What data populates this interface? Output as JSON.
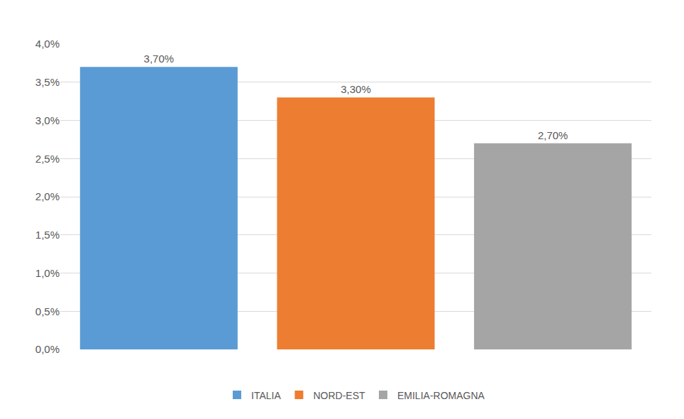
{
  "chart_data": {
    "type": "bar",
    "categories": [
      "ITALIA",
      "NORD-EST",
      "EMILIA-ROMAGNA"
    ],
    "values": [
      3.7,
      3.3,
      2.7
    ],
    "value_labels": [
      "3,70%",
      "3,30%",
      "2,70%"
    ],
    "colors": [
      "#5b9bd5",
      "#ed7d31",
      "#a5a5a5"
    ],
    "ylim": [
      0,
      4
    ],
    "yticks": [
      {
        "value": 0,
        "label": "0,0%"
      },
      {
        "value": 0.5,
        "label": "0,5%"
      },
      {
        "value": 1,
        "label": "1,0%"
      },
      {
        "value": 1.5,
        "label": "1,5%"
      },
      {
        "value": 2,
        "label": "2,0%"
      },
      {
        "value": 2.5,
        "label": "2,5%"
      },
      {
        "value": 3,
        "label": "3,0%"
      },
      {
        "value": 3.5,
        "label": "3,5%"
      },
      {
        "value": 4,
        "label": "4,0%"
      }
    ],
    "grid": true,
    "data_labels": true,
    "legend": "bottom",
    "tick_labels": "y"
  }
}
